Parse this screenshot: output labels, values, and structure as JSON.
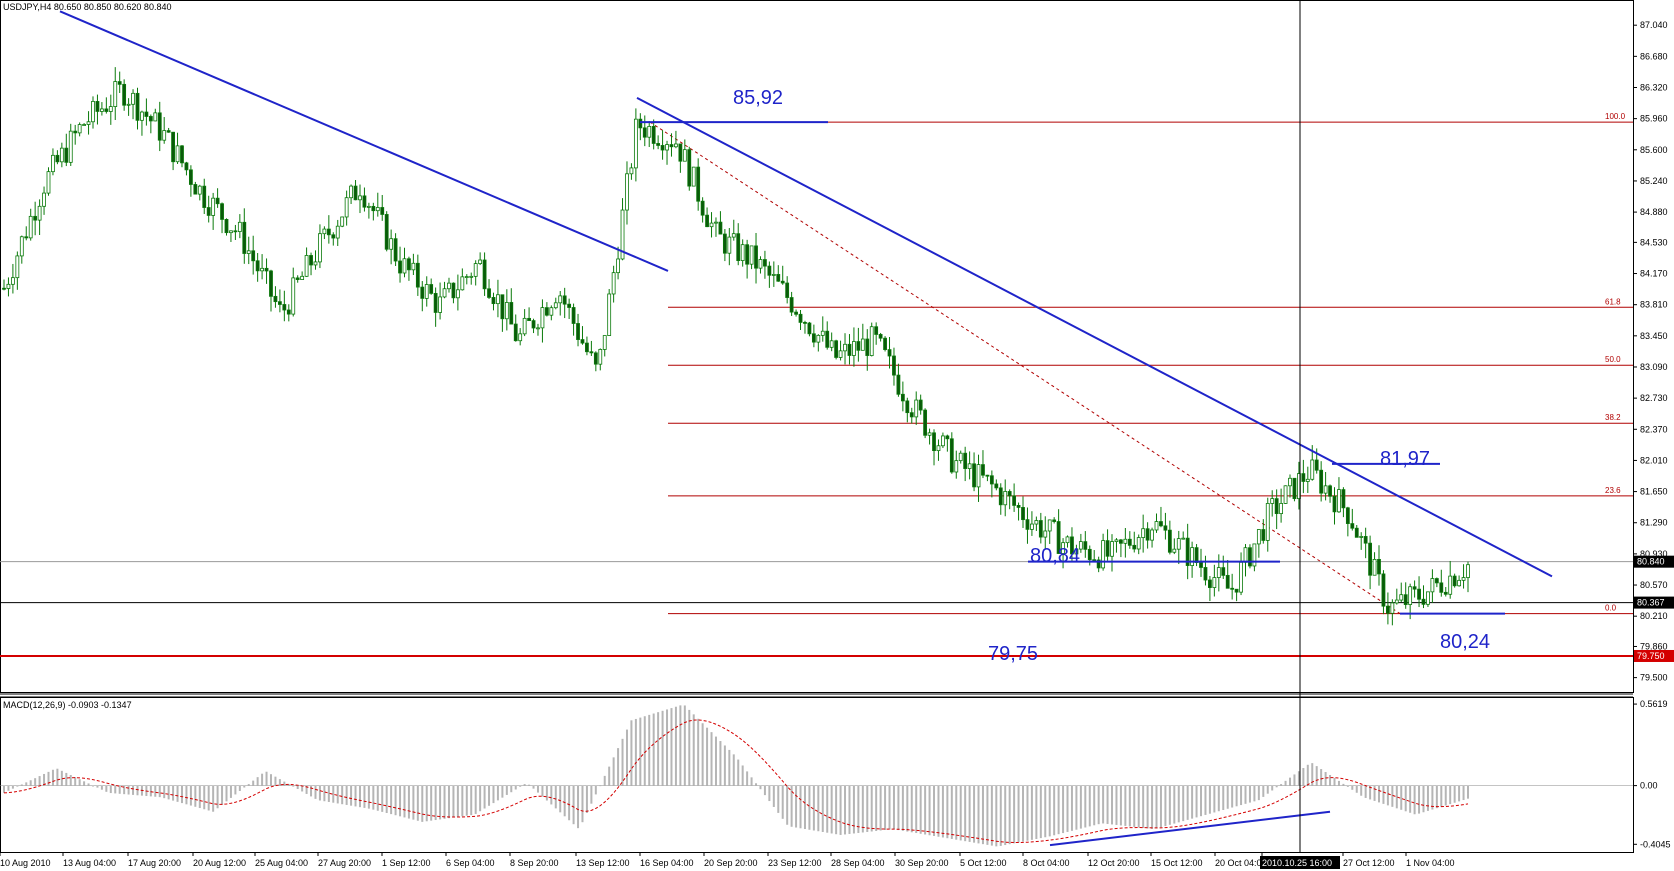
{
  "chart_data": {
    "type": "candlestick",
    "symbol_header": "USDJPY,H4  80.650 80.850 80.620 80.840",
    "indicator_header": "MACD(12,26,9) -0.0903 -0.1347",
    "y_ticks": [
      "87.040",
      "86.680",
      "86.320",
      "85.960",
      "85.600",
      "85.240",
      "84.880",
      "84.530",
      "84.170",
      "83.810",
      "83.450",
      "83.090",
      "82.730",
      "82.370",
      "82.010",
      "81.650",
      "81.290",
      "80.930",
      "80.570",
      "80.210",
      "79.860",
      "79.500"
    ],
    "ylim": [
      79.5,
      87.22
    ],
    "price_tags": [
      {
        "label": "80.840",
        "value": 80.84,
        "style": "dark"
      },
      {
        "label": "80.367",
        "value": 80.367,
        "style": "dark"
      },
      {
        "label": "79.750",
        "value": 79.75,
        "style": "red"
      }
    ],
    "macd_ticks": [
      "0.5619",
      "0.00",
      "-0.4045"
    ],
    "macd_ylim": [
      -0.43,
      0.59
    ],
    "x_tick_labels": [
      "10 Aug 2010",
      "13 Aug 04:00",
      "17 Aug 20:00",
      "20 Aug 12:00",
      "25 Aug 04:00",
      "27 Aug 20:00",
      "1 Sep 12:00",
      "6 Sep 04:00",
      "8 Sep 20:00",
      "13 Sep 12:00",
      "16 Sep 04:00",
      "20 Sep 20:00",
      "23 Sep 12:00",
      "28 Sep 04:00",
      "30 Sep 20:00",
      "5 Oct 12:00",
      "8 Oct 04:00",
      "12 Oct 20:00",
      "15 Oct 12:00",
      "20 Oct 04:00",
      "2010.10.25 16:00",
      "27 Oct 12:00",
      "1 Nov 04:00"
    ],
    "fib_levels": [
      {
        "label": "100.0",
        "value": 85.92
      },
      {
        "label": "61.8",
        "value": 83.78
      },
      {
        "label": "50.0",
        "value": 83.11
      },
      {
        "label": "38.2",
        "value": 82.44
      },
      {
        "label": "23.6",
        "value": 81.6
      },
      {
        "label": "0.0",
        "value": 80.24
      }
    ],
    "annotations": [
      "85,92",
      "81,97",
      "80,84",
      "79,75",
      "80,24"
    ],
    "horizontal_lines": [
      {
        "value": 80.84,
        "color": "#9a9a9a"
      },
      {
        "value": 80.367,
        "color": "#000000"
      },
      {
        "value": 79.75,
        "color": "#d40000"
      }
    ],
    "price_path": [
      84.0,
      85.2,
      85.9,
      86.3,
      85.8,
      85.1,
      84.6,
      83.7,
      84.5,
      85.2,
      84.3,
      83.8,
      84.3,
      83.4,
      84.0,
      83.0,
      85.9,
      85.7,
      84.6,
      84.3,
      83.8,
      83.2,
      83.4,
      82.6,
      82.0,
      81.7,
      81.3,
      81.0,
      80.9,
      81.3,
      80.9,
      80.5,
      81.4,
      81.9,
      81.4,
      80.3,
      80.5,
      80.8
    ],
    "macd_path": [
      -0.05,
      0.12,
      -0.05,
      -0.08,
      -0.18,
      0.1,
      -0.1,
      -0.16,
      -0.25,
      -0.2,
      0.02,
      -0.3,
      0.45,
      0.56,
      0.2,
      -0.28,
      -0.34,
      -0.3,
      -0.36,
      -0.42,
      -0.35,
      -0.26,
      -0.3,
      -0.2,
      -0.1,
      0.16,
      -0.08,
      -0.2,
      -0.09
    ]
  },
  "colors": {
    "trendline": "#1f24c9",
    "fib": "#b00000",
    "candle": "#0a7a0a",
    "macd_hist": "#b5b5b5",
    "macd_signal": "#d40000",
    "axis": "#000000"
  }
}
